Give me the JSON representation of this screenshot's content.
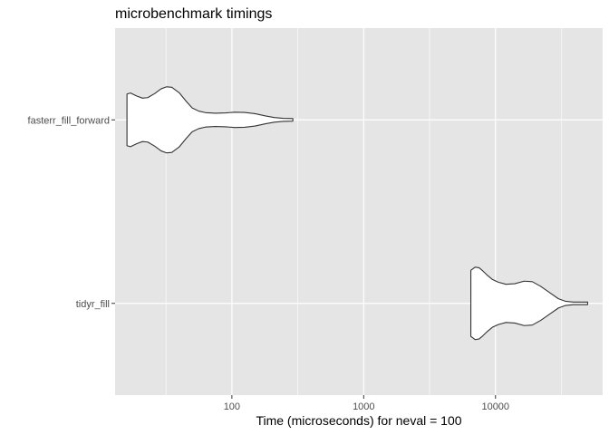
{
  "chart_data": {
    "type": "violin",
    "title": "microbenchmark timings",
    "xlabel": "Time (microseconds) for neval = 100",
    "ylabel": "",
    "x_scale": "log10",
    "xlim": [
      13,
      65000
    ],
    "x_ticks": [
      100,
      1000,
      10000
    ],
    "x_tick_labels": [
      "100",
      "1000",
      "10000"
    ],
    "categories": [
      "fasterr_fill_forward",
      "tidyr_fill"
    ],
    "series": [
      {
        "category": "fasterr_fill_forward",
        "min": 16,
        "max": 290,
        "density": [
          {
            "x": 16,
            "w": 0.5
          },
          {
            "x": 17,
            "w": 0.52
          },
          {
            "x": 19,
            "w": 0.46
          },
          {
            "x": 21,
            "w": 0.42
          },
          {
            "x": 23,
            "w": 0.43
          },
          {
            "x": 26,
            "w": 0.51
          },
          {
            "x": 29,
            "w": 0.6
          },
          {
            "x": 32,
            "w": 0.64
          },
          {
            "x": 35,
            "w": 0.63
          },
          {
            "x": 40,
            "w": 0.52
          },
          {
            "x": 45,
            "w": 0.36
          },
          {
            "x": 50,
            "w": 0.23
          },
          {
            "x": 56,
            "w": 0.17
          },
          {
            "x": 63,
            "w": 0.14
          },
          {
            "x": 75,
            "w": 0.128
          },
          {
            "x": 90,
            "w": 0.135
          },
          {
            "x": 105,
            "w": 0.148
          },
          {
            "x": 125,
            "w": 0.143
          },
          {
            "x": 150,
            "w": 0.12
          },
          {
            "x": 180,
            "w": 0.075
          },
          {
            "x": 210,
            "w": 0.045
          },
          {
            "x": 245,
            "w": 0.03
          },
          {
            "x": 290,
            "w": 0.025
          }
        ]
      },
      {
        "category": "tidyr_fill",
        "min": 6500,
        "max": 50000,
        "density": [
          {
            "x": 6500,
            "w": 0.64
          },
          {
            "x": 7000,
            "w": 0.7
          },
          {
            "x": 7500,
            "w": 0.69
          },
          {
            "x": 8000,
            "w": 0.63
          },
          {
            "x": 8700,
            "w": 0.54
          },
          {
            "x": 9500,
            "w": 0.46
          },
          {
            "x": 10500,
            "w": 0.41
          },
          {
            "x": 12000,
            "w": 0.37
          },
          {
            "x": 14000,
            "w": 0.38
          },
          {
            "x": 16500,
            "w": 0.43
          },
          {
            "x": 19000,
            "w": 0.42
          },
          {
            "x": 22000,
            "w": 0.33
          },
          {
            "x": 26000,
            "w": 0.2
          },
          {
            "x": 30000,
            "w": 0.09
          },
          {
            "x": 34000,
            "w": 0.04
          },
          {
            "x": 39000,
            "w": 0.025
          },
          {
            "x": 45000,
            "w": 0.025
          },
          {
            "x": 50000,
            "w": 0.025
          }
        ]
      }
    ],
    "colors": {
      "panel_background": "#e5e5e5",
      "grid": "#ffffff",
      "violin_fill": "#ffffff",
      "violin_stroke": "#333333",
      "tick_label": "#4d4d4d",
      "tick_mark": "#333333"
    }
  }
}
